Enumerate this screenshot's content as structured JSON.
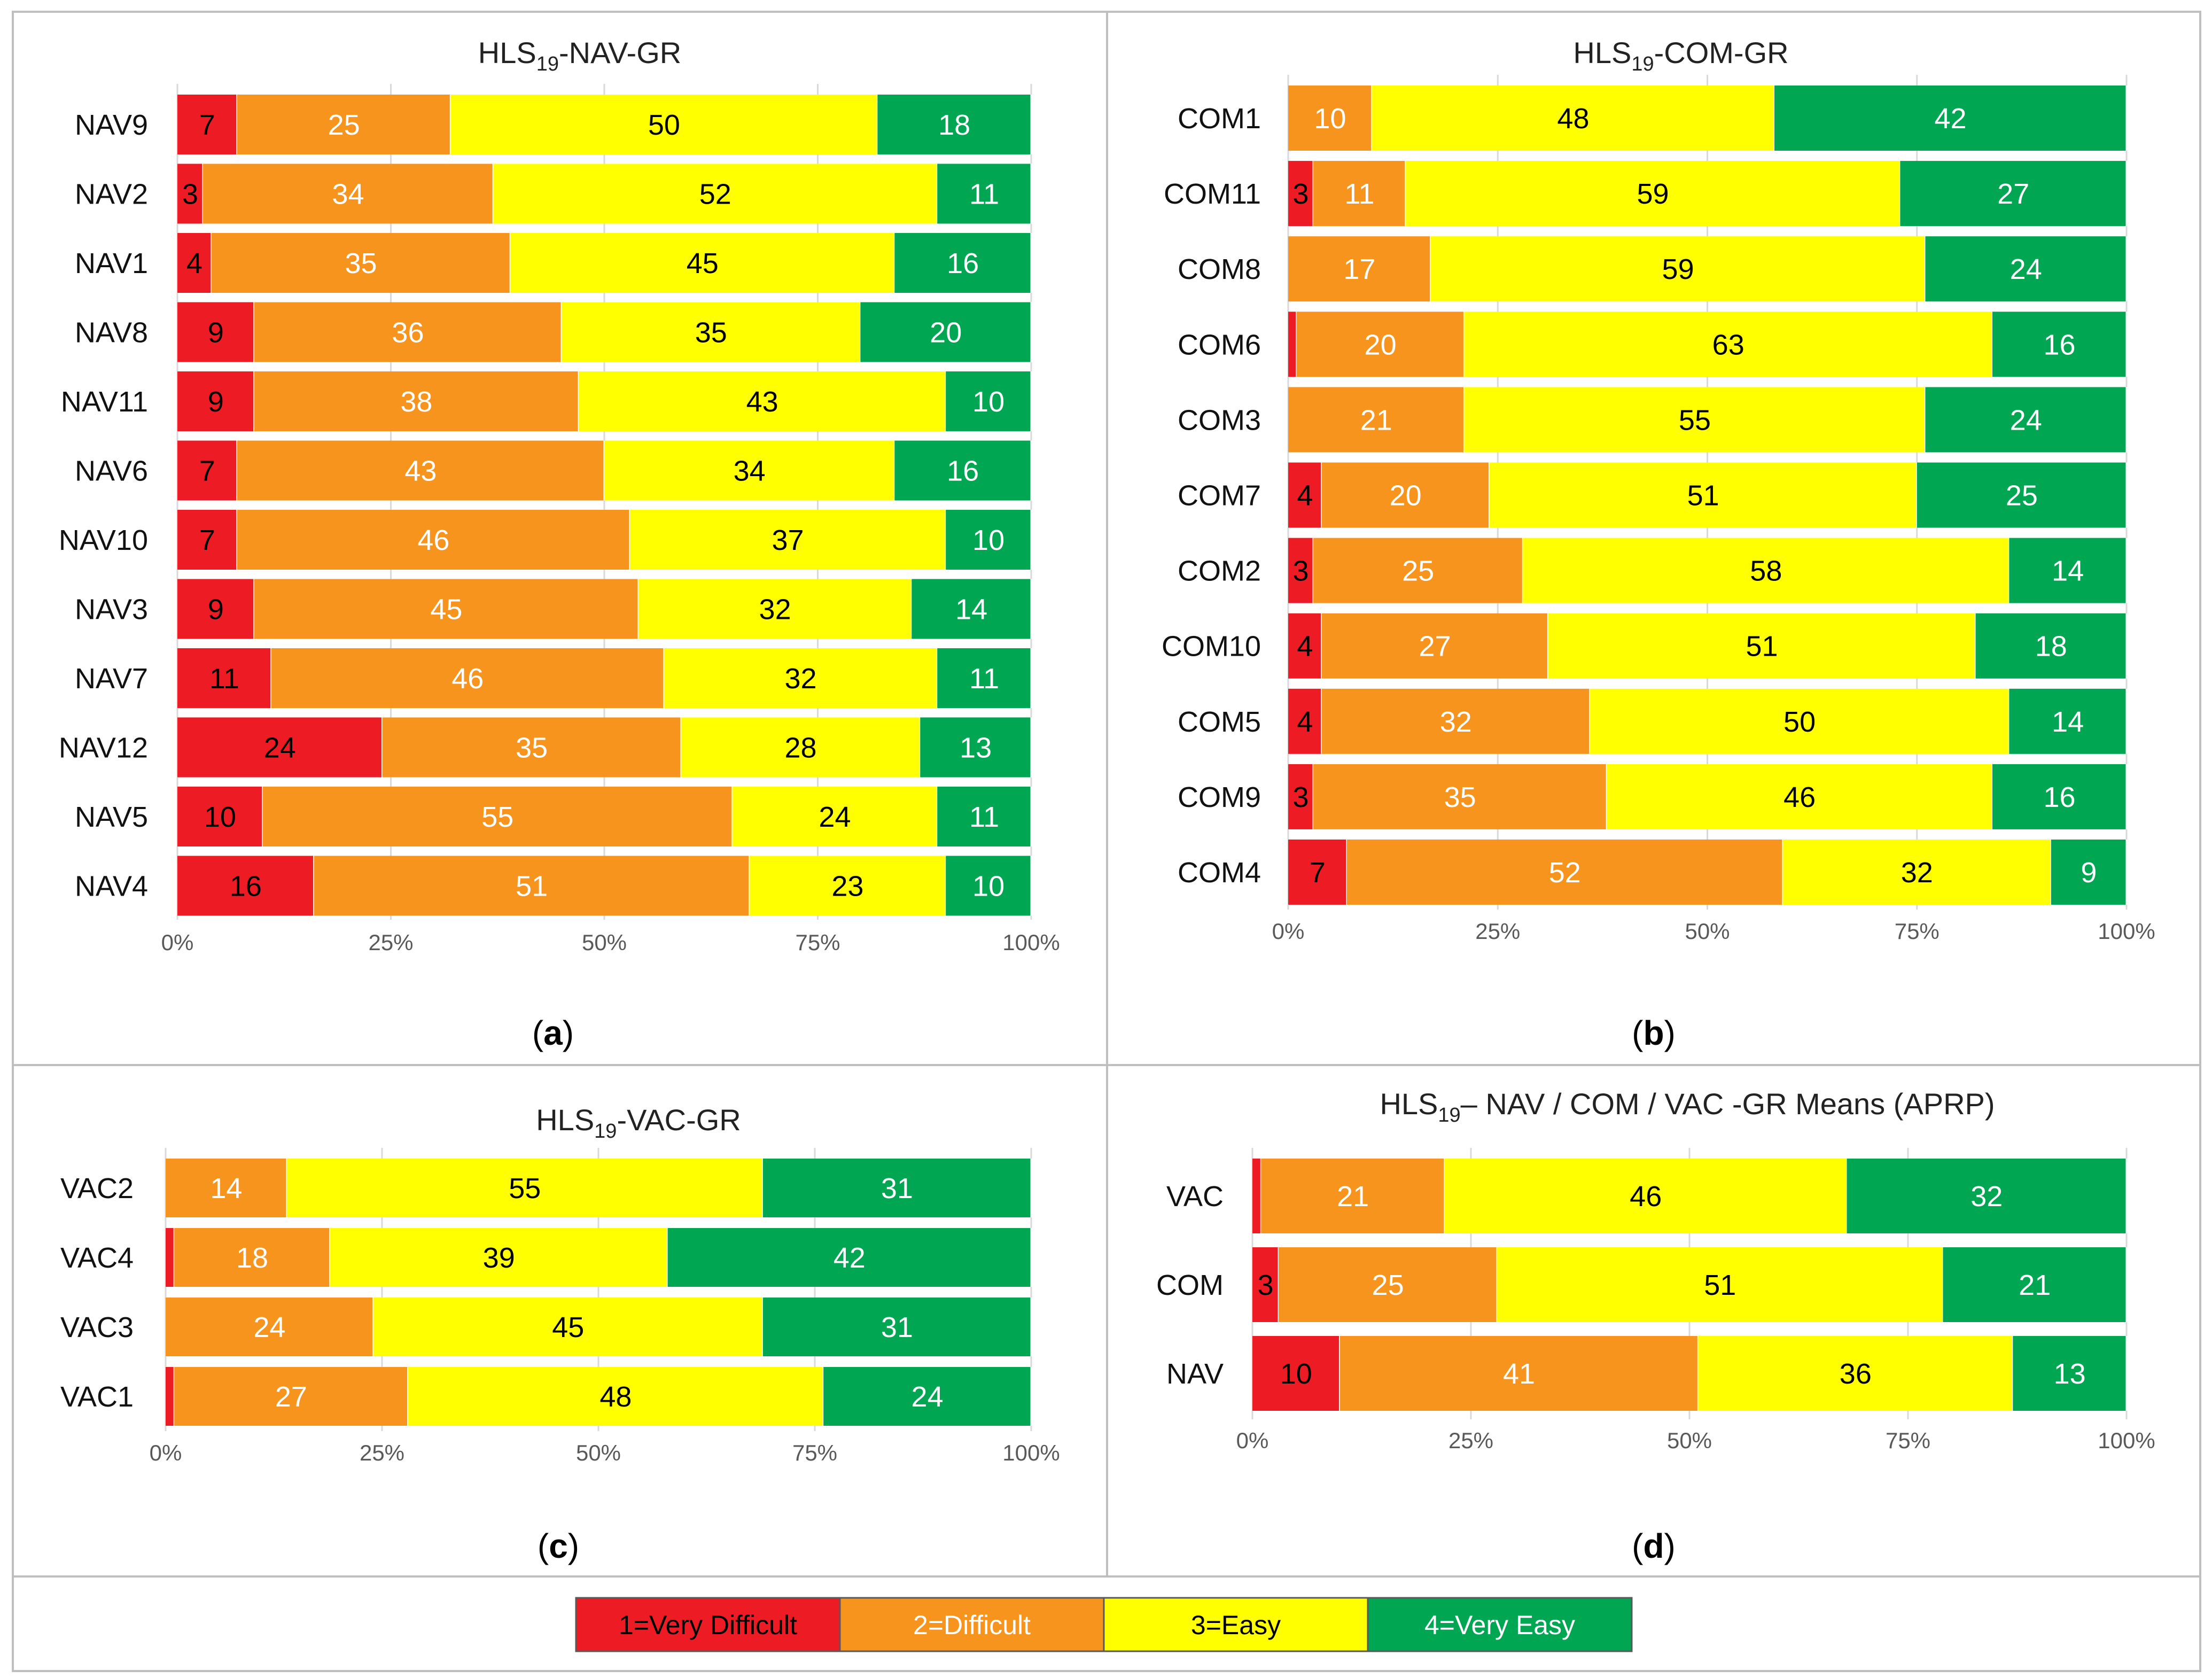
{
  "colors": {
    "very_difficult": "#ED1C24",
    "difficult": "#F7941D",
    "easy": "#FFFF00",
    "very_easy": "#00A651",
    "label_dark": "#000000",
    "label_light": "#FFFFFF",
    "axis_text": "#595959",
    "panel_border": "#BFBFBF",
    "gridline": "#D9D9D9"
  },
  "legend": {
    "items": [
      {
        "label": "1=Very Difficult",
        "color_key": "very_difficult",
        "text_color_key": "label_dark"
      },
      {
        "label": "2=Difficult",
        "color_key": "difficult",
        "text_color_key": "label_light"
      },
      {
        "label": "3=Easy",
        "color_key": "easy",
        "text_color_key": "label_dark"
      },
      {
        "label": "4=Very Easy",
        "color_key": "very_easy",
        "text_color_key": "label_light"
      }
    ]
  },
  "chart_data": [
    {
      "type": "bar",
      "orientation": "horizontal",
      "stacked": "percent",
      "panel_label": "a",
      "title": {
        "main": "HLS",
        "sub": "19",
        "rest": "-NAV-GR"
      },
      "x_ticks": [
        "0%",
        "25%",
        "50%",
        "75%",
        "100%"
      ],
      "categories": [
        "NAV9",
        "NAV2",
        "NAV1",
        "NAV8",
        "NAV11",
        "NAV6",
        "NAV10",
        "NAV3",
        "NAV7",
        "NAV12",
        "NAV5",
        "NAV4"
      ],
      "series": [
        {
          "name": "1=Very Difficult",
          "values": [
            7,
            3,
            4,
            9,
            9,
            7,
            7,
            9,
            11,
            24,
            10,
            16
          ]
        },
        {
          "name": "2=Difficult",
          "values": [
            25,
            34,
            35,
            36,
            38,
            43,
            46,
            45,
            46,
            35,
            55,
            51
          ]
        },
        {
          "name": "3=Easy",
          "values": [
            50,
            52,
            45,
            35,
            43,
            34,
            37,
            32,
            32,
            28,
            24,
            23
          ]
        },
        {
          "name": "4=Very Easy",
          "values": [
            18,
            11,
            16,
            20,
            10,
            16,
            10,
            14,
            11,
            13,
            11,
            10
          ]
        }
      ]
    },
    {
      "type": "bar",
      "orientation": "horizontal",
      "stacked": "percent",
      "panel_label": "b",
      "title": {
        "main": "HLS",
        "sub": "19",
        "rest": "-COM-GR"
      },
      "x_ticks": [
        "0%",
        "25%",
        "50%",
        "75%",
        "100%"
      ],
      "categories": [
        "COM1",
        "COM11",
        "COM8",
        "COM6",
        "COM3",
        "COM7",
        "COM2",
        "COM10",
        "COM5",
        "COM9",
        "COM4"
      ],
      "series": [
        {
          "name": "1=Very Difficult",
          "values": [
            0,
            3,
            0,
            1,
            0,
            4,
            3,
            4,
            4,
            3,
            7
          ]
        },
        {
          "name": "2=Difficult",
          "values": [
            10,
            11,
            17,
            20,
            21,
            20,
            25,
            27,
            32,
            35,
            52
          ]
        },
        {
          "name": "3=Easy",
          "values": [
            48,
            59,
            59,
            63,
            55,
            51,
            58,
            51,
            50,
            46,
            32
          ]
        },
        {
          "name": "4=Very Easy",
          "values": [
            42,
            27,
            24,
            16,
            24,
            25,
            14,
            18,
            14,
            16,
            9
          ]
        }
      ]
    },
    {
      "type": "bar",
      "orientation": "horizontal",
      "stacked": "percent",
      "panel_label": "c",
      "title": {
        "main": "HLS",
        "sub": "19",
        "rest": "-VAC-GR"
      },
      "x_ticks": [
        "0%",
        "25%",
        "50%",
        "75%",
        "100%"
      ],
      "categories": [
        "VAC2",
        "VAC4",
        "VAC3",
        "VAC1"
      ],
      "series": [
        {
          "name": "1=Very Difficult",
          "values": [
            0,
            1,
            0,
            1
          ]
        },
        {
          "name": "2=Difficult",
          "values": [
            14,
            18,
            24,
            27
          ]
        },
        {
          "name": "3=Easy",
          "values": [
            55,
            39,
            45,
            48
          ]
        },
        {
          "name": "4=Very Easy",
          "values": [
            31,
            42,
            31,
            24
          ]
        }
      ]
    },
    {
      "type": "bar",
      "orientation": "horizontal",
      "stacked": "percent",
      "panel_label": "d",
      "title": {
        "main": "HLS",
        "sub": "19",
        "rest": "– NAV / COM / VAC -GR Means (APRP)"
      },
      "x_ticks": [
        "0%",
        "25%",
        "50%",
        "75%",
        "100%"
      ],
      "categories": [
        "VAC",
        "COM",
        "NAV"
      ],
      "series": [
        {
          "name": "1=Very Difficult",
          "values": [
            1,
            3,
            10
          ]
        },
        {
          "name": "2=Difficult",
          "values": [
            21,
            25,
            41
          ]
        },
        {
          "name": "3=Easy",
          "values": [
            46,
            51,
            36
          ]
        },
        {
          "name": "4=Very Easy",
          "values": [
            32,
            21,
            13
          ]
        }
      ]
    }
  ]
}
